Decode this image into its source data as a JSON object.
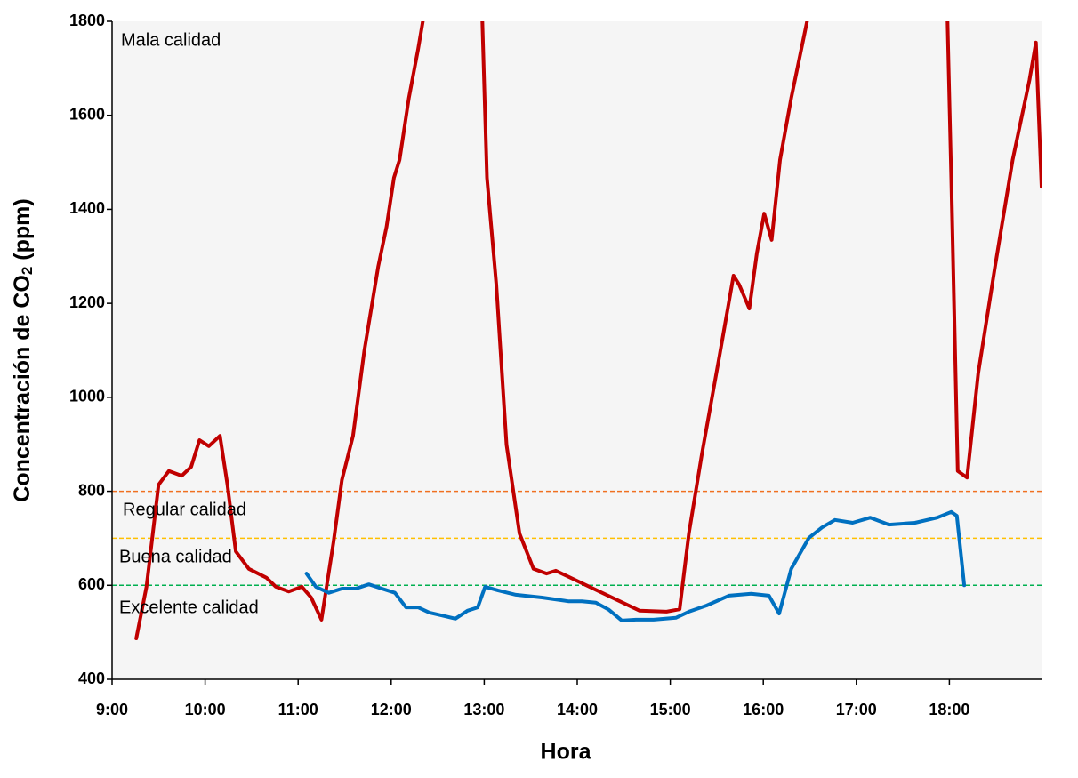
{
  "chart_data": {
    "type": "line",
    "x_label": "Hora",
    "y_label": [
      "Concentración de CO",
      "2",
      " (ppm)"
    ],
    "xlim": [
      9,
      19
    ],
    "xticks": [
      {
        "value": 9,
        "label": "9:00"
      },
      {
        "value": 10,
        "label": "10:00"
      },
      {
        "value": 11,
        "label": "11:00"
      },
      {
        "value": 12,
        "label": "12:00"
      },
      {
        "value": 13,
        "label": "13:00"
      },
      {
        "value": 14,
        "label": "14:00"
      },
      {
        "value": 15,
        "label": "15:00"
      },
      {
        "value": 16,
        "label": "16:00"
      },
      {
        "value": 17,
        "label": "17:00"
      },
      {
        "value": 18,
        "label": "18:00"
      }
    ],
    "ylim": [
      400,
      1800
    ],
    "yticks": [
      400,
      600,
      800,
      1000,
      1200,
      1400,
      1600,
      1800
    ],
    "reference_lines": [
      {
        "value": 800,
        "color": "#f07020"
      },
      {
        "value": 700,
        "color": "#ffc000"
      },
      {
        "value": 600,
        "color": "#00b050"
      }
    ],
    "annotations": [
      "Mala calidad",
      "Regular calidad",
      "Buena calidad",
      "Excelente calidad"
    ],
    "series": [
      {
        "color": "#c00000",
        "x": [
          9.26,
          9.37,
          9.5,
          9.61,
          9.75,
          9.85,
          9.94,
          10.04,
          10.16,
          10.24,
          10.33,
          10.47,
          10.66,
          10.76,
          10.9,
          11.04,
          11.14,
          11.25,
          11.38,
          11.47,
          11.59,
          11.71,
          11.86,
          11.95,
          12.03,
          12.09,
          12.19,
          12.29,
          12.34,
          12.66,
          12.98,
          13.03,
          13.13,
          13.24,
          13.38,
          13.53,
          13.67,
          13.77,
          14.67,
          14.96,
          15.1,
          15.2,
          15.34,
          15.53,
          15.68,
          15.74,
          15.85,
          15.93,
          16.01,
          16.09,
          16.18,
          16.3,
          16.47,
          17.2,
          17.98,
          18.02,
          18.09,
          18.19,
          18.31,
          18.49,
          18.68,
          18.86,
          18.93,
          18.99
        ],
        "values": [
          487,
          597,
          814,
          843,
          833,
          852,
          909,
          896,
          918,
          814,
          672,
          635,
          616,
          597,
          587,
          597,
          574,
          527,
          691,
          824,
          918,
          1098,
          1278,
          1363,
          1467,
          1505,
          1637,
          1741,
          1800,
          null,
          1800,
          1467,
          1240,
          899,
          710,
          635,
          625,
          631,
          546,
          544,
          549,
          710,
          880,
          1089,
          1259,
          1240,
          1189,
          1306,
          1391,
          1335,
          1505,
          1637,
          1800,
          null,
          1800,
          1467,
          843,
          829,
          1051,
          1278,
          1505,
          1675,
          1755,
          1448
        ]
      },
      {
        "color": "#0070c0",
        "x": [
          11.09,
          11.19,
          11.33,
          11.47,
          11.62,
          11.76,
          11.9,
          12.04,
          12.16,
          12.29,
          12.41,
          12.54,
          12.69,
          12.82,
          12.93,
          13.01,
          13.15,
          13.34,
          13.62,
          13.91,
          14.05,
          14.2,
          14.34,
          14.48,
          14.63,
          14.82,
          15.06,
          15.2,
          15.39,
          15.63,
          15.87,
          16.06,
          16.17,
          16.3,
          16.49,
          16.63,
          16.77,
          16.96,
          17.15,
          17.35,
          17.63,
          17.87,
          18.02,
          18.08,
          18.16
        ],
        "values": [
          625,
          597,
          584,
          593,
          593,
          602,
          593,
          584,
          553,
          553,
          542,
          536,
          529,
          546,
          553,
          597,
          589,
          580,
          574,
          566,
          566,
          563,
          548,
          525,
          527,
          527,
          531,
          544,
          557,
          578,
          582,
          578,
          540,
          635,
          701,
          723,
          739,
          733,
          744,
          729,
          733,
          744,
          756,
          748,
          600
        ]
      }
    ]
  }
}
